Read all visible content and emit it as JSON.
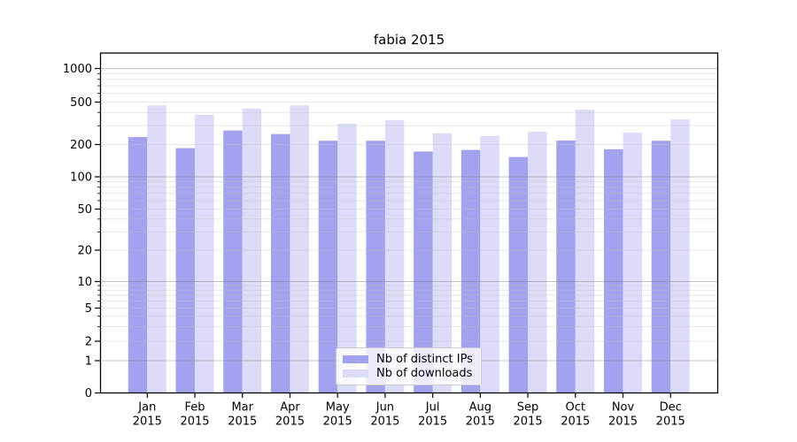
{
  "chart_data": {
    "type": "bar",
    "title": "fabia 2015",
    "categories": [
      "Jan",
      "Feb",
      "Mar",
      "Apr",
      "May",
      "Jun",
      "Jul",
      "Aug",
      "Sep",
      "Oct",
      "Nov",
      "Dec"
    ],
    "year": "2015",
    "series": [
      {
        "name": "Nb of distinct IPs",
        "color": "#a2a2ef",
        "values": [
          235,
          185,
          271,
          251,
          217,
          217,
          172,
          178,
          153,
          218,
          181,
          217
        ]
      },
      {
        "name": "Nb of downloads",
        "color": "#dcdcf9",
        "values": [
          466,
          379,
          435,
          466,
          313,
          338,
          255,
          240,
          264,
          425,
          258,
          344
        ]
      }
    ],
    "yscale": "symlog",
    "y_ticks": [
      0,
      1,
      2,
      5,
      10,
      20,
      50,
      100,
      200,
      500,
      1000
    ],
    "ylim": [
      0,
      1400
    ],
    "grid": "both",
    "legend_position": "lower-center"
  }
}
